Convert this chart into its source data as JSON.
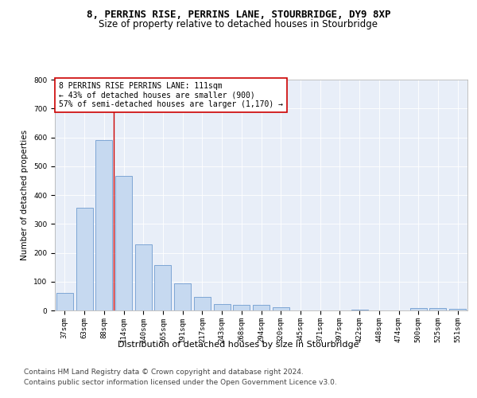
{
  "title": "8, PERRINS RISE, PERRINS LANE, STOURBRIDGE, DY9 8XP",
  "subtitle": "Size of property relative to detached houses in Stourbridge",
  "xlabel": "Distribution of detached houses by size in Stourbridge",
  "ylabel": "Number of detached properties",
  "categories": [
    "37sqm",
    "63sqm",
    "88sqm",
    "114sqm",
    "140sqm",
    "165sqm",
    "191sqm",
    "217sqm",
    "243sqm",
    "268sqm",
    "294sqm",
    "320sqm",
    "345sqm",
    "371sqm",
    "397sqm",
    "422sqm",
    "448sqm",
    "474sqm",
    "500sqm",
    "525sqm",
    "551sqm"
  ],
  "values": [
    60,
    357,
    590,
    465,
    228,
    158,
    95,
    48,
    22,
    18,
    18,
    12,
    0,
    0,
    0,
    4,
    0,
    0,
    8,
    8,
    5
  ],
  "bar_color": "#c6d9f0",
  "bar_edge_color": "#5b8dc8",
  "reference_line_x": 2.5,
  "reference_line_color": "#cc0000",
  "annotation_line1": "8 PERRINS RISE PERRINS LANE: 111sqm",
  "annotation_line2": "← 43% of detached houses are smaller (900)",
  "annotation_line3": "57% of semi-detached houses are larger (1,170) →",
  "annotation_color": "#cc0000",
  "ylim": [
    0,
    800
  ],
  "yticks": [
    0,
    100,
    200,
    300,
    400,
    500,
    600,
    700,
    800
  ],
  "bg_color": "#e8eef8",
  "footer_line1": "Contains HM Land Registry data © Crown copyright and database right 2024.",
  "footer_line2": "Contains public sector information licensed under the Open Government Licence v3.0.",
  "title_fontsize": 9,
  "subtitle_fontsize": 8.5,
  "xlabel_fontsize": 8,
  "ylabel_fontsize": 7.5,
  "tick_fontsize": 6.5,
  "footer_fontsize": 6.5,
  "annotation_fontsize": 7
}
